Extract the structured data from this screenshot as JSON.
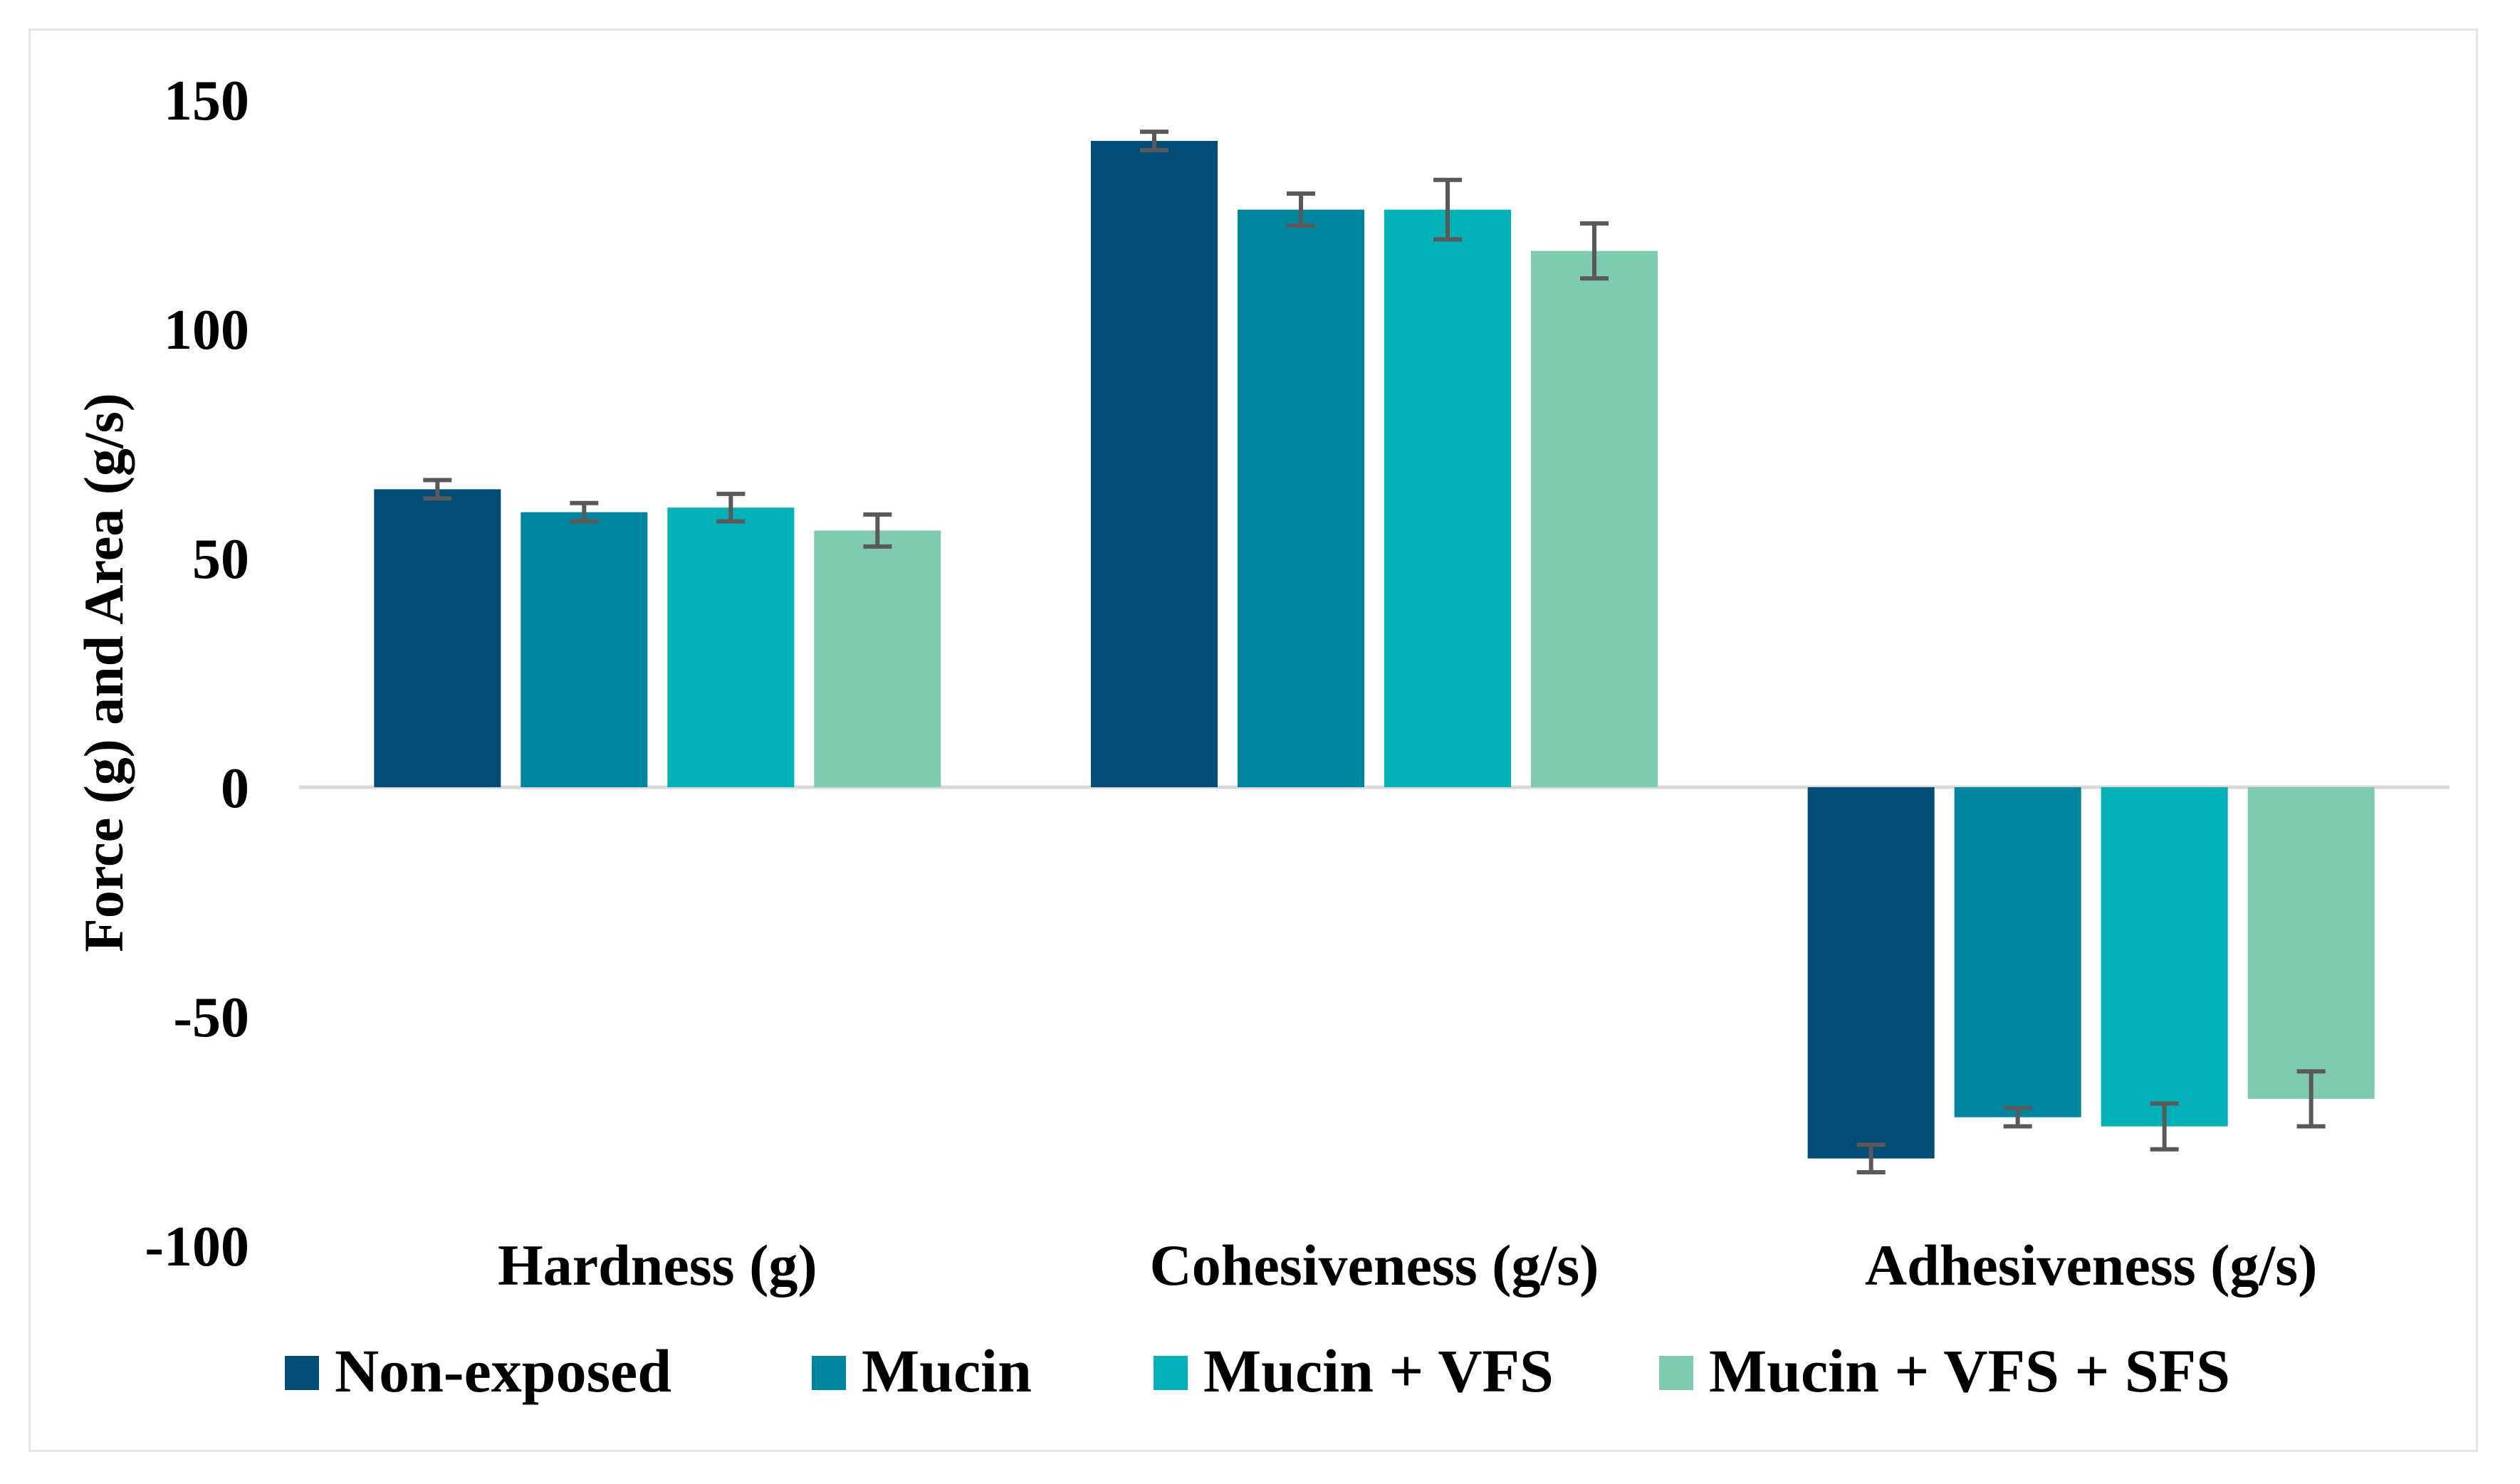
{
  "chart_data": {
    "type": "bar",
    "categories": [
      "Hardness (g)",
      "Cohesiveness (g/s)",
      "Adhesiveness (g/s)"
    ],
    "series": [
      {
        "name": "Non-exposed",
        "color": "#004e78",
        "values": [
          65,
          141,
          -81
        ],
        "errors": [
          2,
          2,
          3
        ]
      },
      {
        "name": "Mucin",
        "color": "#00859e",
        "values": [
          60,
          126,
          -72
        ],
        "errors": [
          2,
          3.5,
          2
        ]
      },
      {
        "name": "Mucin + VFS",
        "color": "#00b2b8",
        "values": [
          61,
          126,
          -74
        ],
        "errors": [
          3,
          6.5,
          5
        ]
      },
      {
        "name": "Mucin + VFS + SFS",
        "color": "#7fcbb0",
        "values": [
          56,
          117,
          -68
        ],
        "errors": [
          3.5,
          6,
          6
        ]
      }
    ],
    "ylabel": "Force (g) and Area (g/s)",
    "ylim": [
      -100,
      150
    ],
    "yticks": [
      150,
      100,
      50,
      0,
      -50,
      -100
    ],
    "grid": false,
    "legend": "bottom"
  }
}
